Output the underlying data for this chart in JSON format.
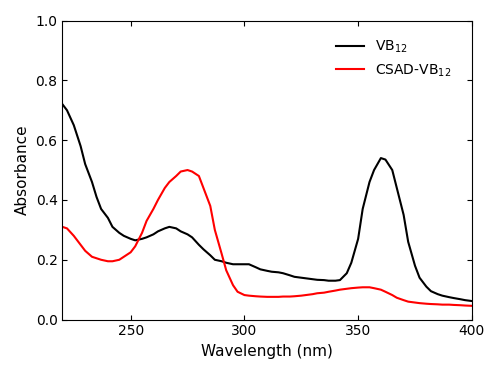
{
  "xlabel": "Wavelength (nm)",
  "ylabel": "Absorbance",
  "xlim": [
    220,
    400
  ],
  "ylim": [
    0.0,
    1.0
  ],
  "xticks": [
    250,
    300,
    350,
    400
  ],
  "yticks": [
    0.0,
    0.2,
    0.4,
    0.6,
    0.8,
    1.0
  ],
  "legend": [
    {
      "label": "VB$_{12}$",
      "color": "black"
    },
    {
      "label": "CSAD-VB$_{12}$",
      "color": "red"
    }
  ],
  "vb12": {
    "color": "black",
    "x": [
      220,
      222,
      225,
      228,
      230,
      233,
      235,
      237,
      240,
      242,
      245,
      247,
      250,
      252,
      255,
      257,
      260,
      262,
      265,
      267,
      270,
      272,
      275,
      277,
      280,
      282,
      285,
      287,
      290,
      292,
      295,
      297,
      300,
      302,
      305,
      307,
      310,
      312,
      315,
      317,
      320,
      322,
      325,
      327,
      330,
      332,
      335,
      337,
      340,
      342,
      345,
      347,
      350,
      352,
      355,
      357,
      360,
      362,
      365,
      367,
      370,
      372,
      375,
      377,
      380,
      382,
      385,
      387,
      390,
      392,
      395,
      397,
      400
    ],
    "y": [
      0.72,
      0.7,
      0.65,
      0.58,
      0.52,
      0.46,
      0.41,
      0.37,
      0.34,
      0.31,
      0.29,
      0.28,
      0.27,
      0.265,
      0.27,
      0.275,
      0.285,
      0.295,
      0.305,
      0.31,
      0.305,
      0.295,
      0.285,
      0.275,
      0.25,
      0.235,
      0.215,
      0.2,
      0.195,
      0.19,
      0.185,
      0.185,
      0.185,
      0.185,
      0.175,
      0.168,
      0.163,
      0.16,
      0.158,
      0.155,
      0.148,
      0.143,
      0.14,
      0.138,
      0.135,
      0.133,
      0.132,
      0.13,
      0.13,
      0.132,
      0.155,
      0.19,
      0.27,
      0.37,
      0.46,
      0.5,
      0.54,
      0.535,
      0.5,
      0.44,
      0.35,
      0.26,
      0.18,
      0.14,
      0.11,
      0.095,
      0.085,
      0.08,
      0.075,
      0.072,
      0.068,
      0.065,
      0.062
    ]
  },
  "csad_vb12": {
    "color": "red",
    "x": [
      220,
      222,
      225,
      228,
      230,
      233,
      235,
      237,
      240,
      242,
      245,
      247,
      250,
      252,
      255,
      257,
      260,
      262,
      265,
      267,
      270,
      272,
      275,
      277,
      280,
      282,
      285,
      287,
      290,
      292,
      295,
      297,
      300,
      302,
      305,
      307,
      310,
      312,
      315,
      317,
      320,
      322,
      325,
      327,
      330,
      332,
      335,
      337,
      340,
      342,
      345,
      347,
      350,
      352,
      355,
      357,
      360,
      362,
      365,
      367,
      370,
      372,
      375,
      377,
      380,
      382,
      385,
      387,
      390,
      392,
      395,
      397,
      400
    ],
    "y": [
      0.31,
      0.305,
      0.28,
      0.25,
      0.23,
      0.21,
      0.205,
      0.2,
      0.195,
      0.195,
      0.2,
      0.21,
      0.225,
      0.245,
      0.29,
      0.33,
      0.37,
      0.4,
      0.44,
      0.46,
      0.48,
      0.495,
      0.5,
      0.495,
      0.48,
      0.44,
      0.38,
      0.3,
      0.22,
      0.165,
      0.115,
      0.093,
      0.082,
      0.08,
      0.078,
      0.077,
      0.076,
      0.076,
      0.076,
      0.077,
      0.077,
      0.078,
      0.08,
      0.082,
      0.085,
      0.088,
      0.09,
      0.093,
      0.097,
      0.1,
      0.103,
      0.105,
      0.107,
      0.108,
      0.108,
      0.105,
      0.1,
      0.093,
      0.082,
      0.073,
      0.065,
      0.06,
      0.057,
      0.055,
      0.053,
      0.052,
      0.051,
      0.05,
      0.05,
      0.049,
      0.048,
      0.047,
      0.046
    ]
  }
}
